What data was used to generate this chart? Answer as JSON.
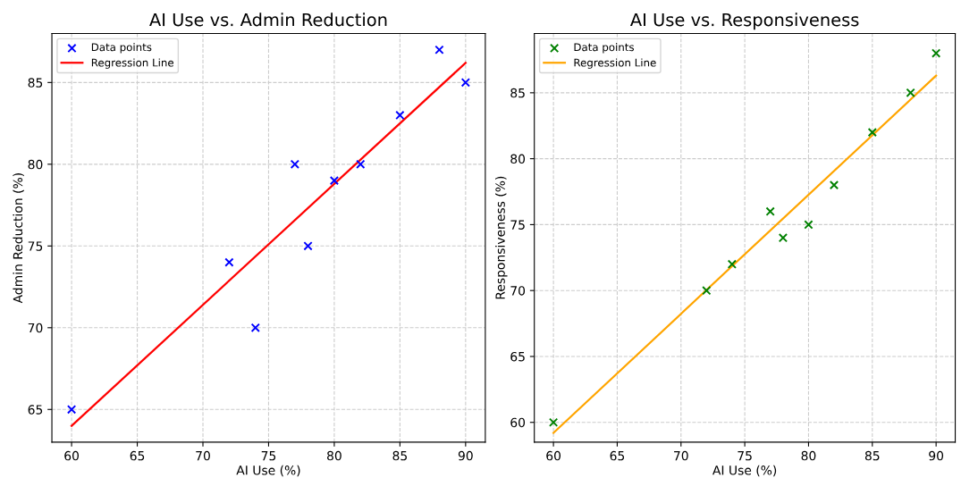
{
  "chart_data": [
    {
      "type": "scatter",
      "title": "AI Use vs. Admin Reduction",
      "xlabel": "AI Use (%)",
      "ylabel": "Admin Reduction (%)",
      "xlim": [
        58.5,
        91.5
      ],
      "ylim": [
        63,
        88
      ],
      "xticks": [
        60,
        65,
        70,
        75,
        80,
        85,
        90
      ],
      "yticks": [
        65,
        70,
        75,
        80,
        85
      ],
      "grid": true,
      "legend": "top left",
      "series": [
        {
          "name": "Data points",
          "marker": "cross",
          "color": "#0000ff",
          "x": [
            60,
            72,
            74,
            77,
            78,
            80,
            82,
            85,
            88,
            90
          ],
          "values": [
            65,
            74,
            70,
            80,
            75,
            79,
            80,
            83,
            87,
            85
          ]
        },
        {
          "name": "Regression Line",
          "type": "line",
          "marker": "none",
          "line_style": "solid",
          "color": "#ff0000",
          "x": [
            60,
            90
          ],
          "values": [
            64.0,
            86.2
          ]
        }
      ]
    },
    {
      "type": "scatter",
      "title": "AI Use vs. Responsiveness",
      "xlabel": "AI Use (%)",
      "ylabel": "Responsiveness (%)",
      "xlim": [
        58.5,
        91.5
      ],
      "ylim": [
        58.5,
        89.5
      ],
      "xticks": [
        60,
        65,
        70,
        75,
        80,
        85,
        90
      ],
      "yticks": [
        60,
        65,
        70,
        75,
        80,
        85
      ],
      "grid": true,
      "legend": "top left",
      "series": [
        {
          "name": "Data points",
          "marker": "cross",
          "color": "#008000",
          "x": [
            60,
            72,
            74,
            77,
            78,
            80,
            82,
            85,
            88,
            90
          ],
          "values": [
            60,
            70,
            72,
            76,
            74,
            75,
            78,
            82,
            85,
            88
          ]
        },
        {
          "name": "Regression Line",
          "type": "line",
          "marker": "none",
          "line_style": "solid",
          "color": "#ffa500",
          "x": [
            60,
            90
          ],
          "values": [
            59.2,
            86.3
          ]
        }
      ]
    }
  ]
}
